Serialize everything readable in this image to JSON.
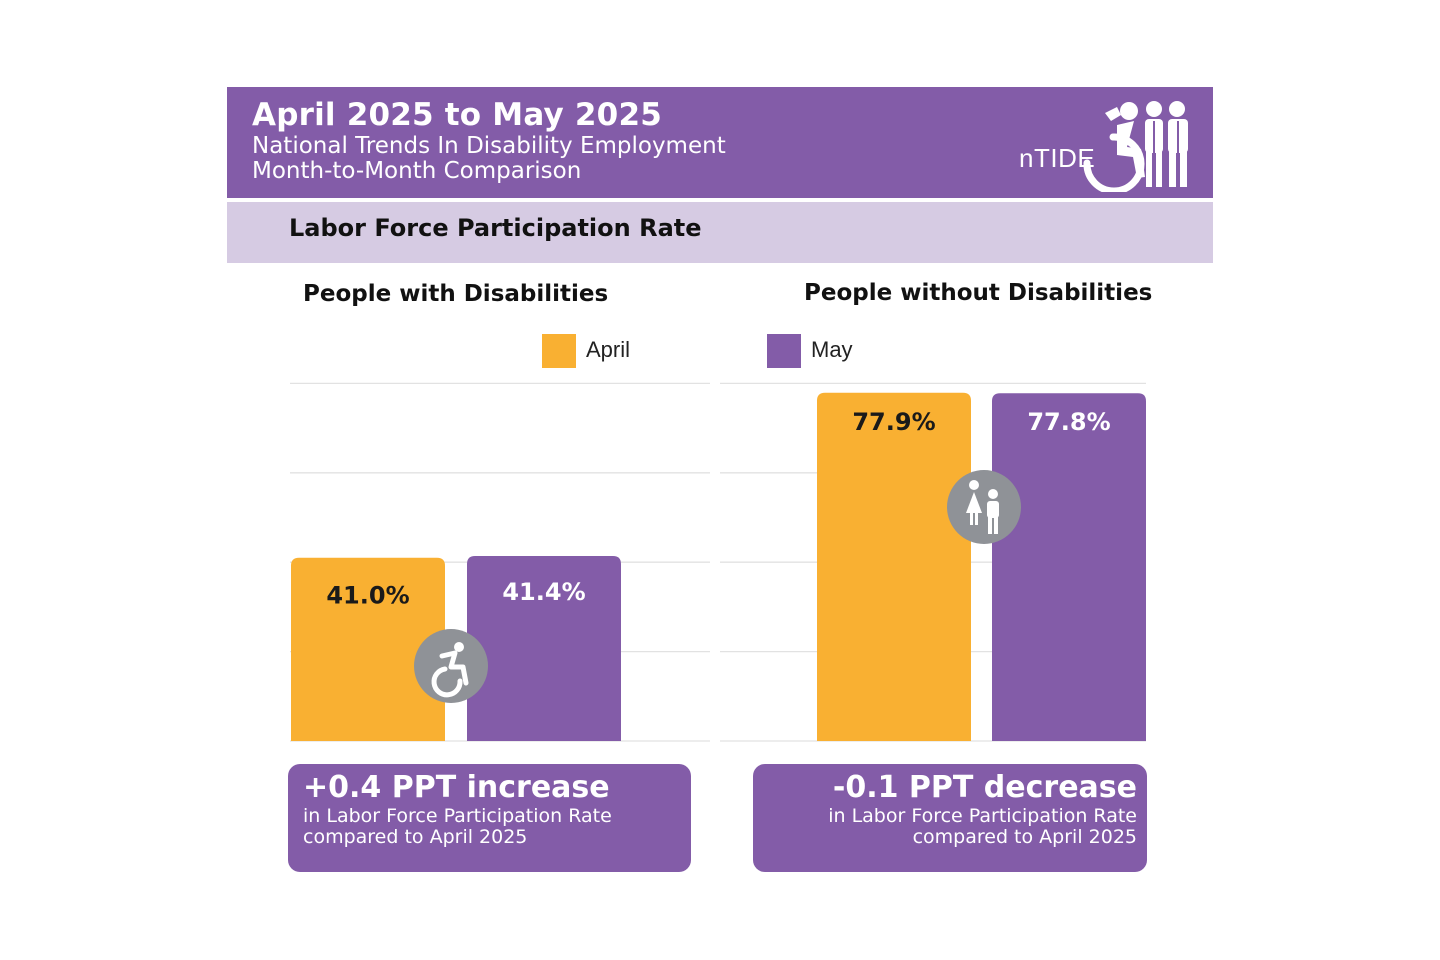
{
  "header": {
    "title": "April 2025 to May 2025",
    "subtitle_line1": "National Trends In Disability Employment",
    "subtitle_line2": "Month-to-Month Comparison",
    "logo_text": "nTIDE"
  },
  "metric_band": {
    "label": "Labor Force Participation Rate"
  },
  "legend": [
    {
      "label": "April",
      "color": "#f9b032"
    },
    {
      "label": "May",
      "color": "#835ca8"
    }
  ],
  "chart_data": [
    {
      "type": "bar",
      "title": "People with Disabilities",
      "categories": [
        "April",
        "May"
      ],
      "values": [
        41.0,
        41.4
      ],
      "data_labels": [
        "41.0%",
        "41.4%"
      ],
      "units": "%",
      "grid": true,
      "colors": [
        "#f9b032",
        "#835ca8"
      ],
      "icon": "wheelchair-icon"
    },
    {
      "type": "bar",
      "title": "People without Disabilities",
      "categories": [
        "April",
        "May"
      ],
      "values": [
        77.9,
        77.8
      ],
      "data_labels": [
        "77.9%",
        "77.8%"
      ],
      "units": "%",
      "grid": true,
      "colors": [
        "#f9b032",
        "#835ca8"
      ],
      "icon": "people-icon"
    }
  ],
  "summary": [
    {
      "headline": "+0.4 PPT  increase",
      "line1": "in Labor Force Participation Rate",
      "line2": "compared to April 2025"
    },
    {
      "headline": "-0.1 PPT  decrease",
      "line1": "in Labor Force Participation Rate",
      "line2": "compared to April 2025"
    }
  ]
}
